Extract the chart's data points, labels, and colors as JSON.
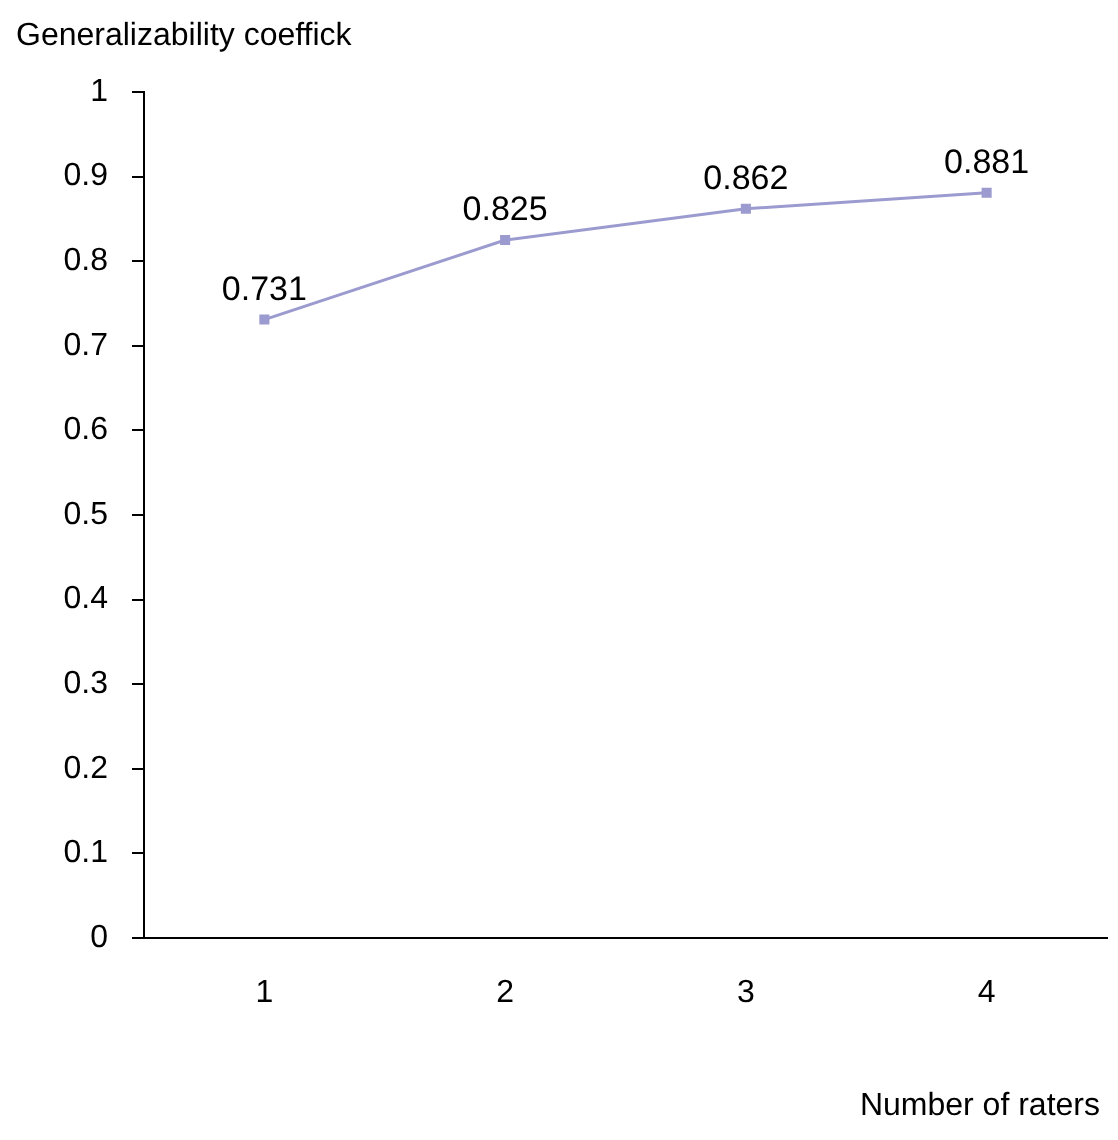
{
  "chart_data": {
    "type": "line",
    "ylabel": "Generalizability coeffick",
    "xlabel": "Number of raters",
    "categories": [
      "1",
      "2",
      "3",
      "4"
    ],
    "series": [
      {
        "color": "#9b9bd0",
        "values": [
          0.731,
          0.825,
          0.862,
          0.881
        ]
      }
    ],
    "ylim": [
      0,
      1
    ],
    "yticks": [
      0,
      0.1,
      0.2,
      0.3,
      0.4,
      0.5,
      0.6,
      0.7,
      0.8,
      0.9,
      1
    ],
    "grid": false,
    "legend": false,
    "marker": "square",
    "data_labels": true
  }
}
